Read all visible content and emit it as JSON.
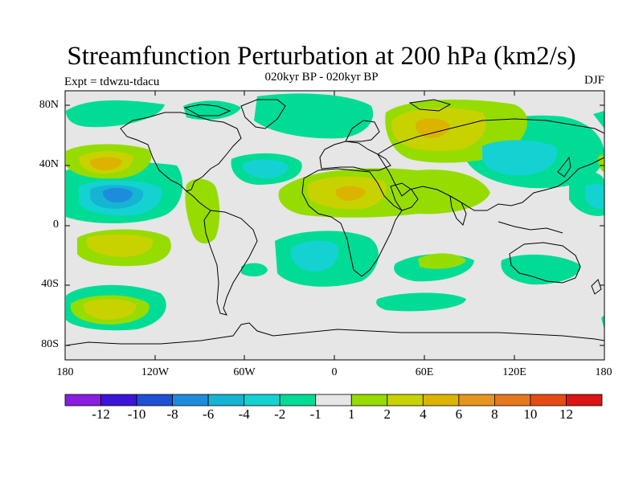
{
  "title": "Streamfunction Perturbation at 200 hPa (km2/s)",
  "subtitle": "020kyr BP - 020kyr BP",
  "experiment_label": "Expt = tdwzu-tdacu",
  "season_label": "DJF",
  "lat_ticks": [
    "80N",
    "40N",
    "0",
    "40S",
    "80S"
  ],
  "lon_ticks": [
    "180",
    "120W",
    "60W",
    "0",
    "60E",
    "120E",
    "180"
  ],
  "colorbar": {
    "labels": [
      "-12",
      "-10",
      "-8",
      "-6",
      "-4",
      "-2",
      "-1",
      "1",
      "2",
      "4",
      "6",
      "8",
      "10",
      "12"
    ],
    "colors": [
      "#8a1ee0",
      "#3c14d8",
      "#1e50d2",
      "#1e8cdc",
      "#14b4d2",
      "#14d2d2",
      "#00dc96",
      "#e6e6e6",
      "#96dc00",
      "#c8d200",
      "#dcb400",
      "#e6961e",
      "#e6781e",
      "#e64b14",
      "#dc1414"
    ]
  },
  "background_color": "#e6e6e6",
  "coast_color": "#000000"
}
